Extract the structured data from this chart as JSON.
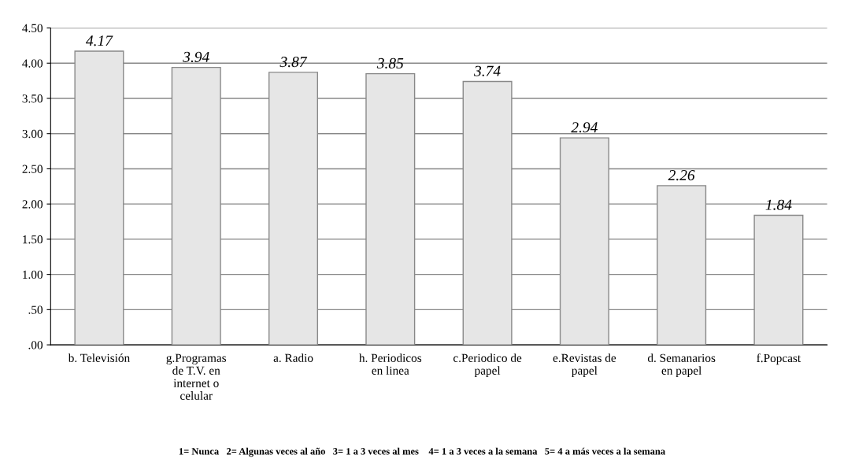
{
  "chart_data": {
    "type": "bar",
    "categories": [
      "b. Televisión",
      "g.Programas\nde T.V. en\ninternet o\ncelular",
      "a. Radio",
      "h. Periodicos\nen linea",
      "c.Periodico de\npapel",
      "e.Revistas de\npapel",
      "d. Semanarios\nen papel",
      "f.Popcast"
    ],
    "values": [
      4.17,
      3.94,
      3.87,
      3.85,
      3.74,
      2.94,
      2.26,
      1.84
    ],
    "color": "#e6e6e6",
    "ylim": [
      0,
      4.5
    ],
    "yticks": [
      {
        "value": 0,
        "label": ".00"
      },
      {
        "value": 0.5,
        "label": ".50"
      },
      {
        "value": 1,
        "label": "1.00"
      },
      {
        "value": 1.5,
        "label": "1.50"
      },
      {
        "value": 2,
        "label": "2.00"
      },
      {
        "value": 2.5,
        "label": "2.50"
      },
      {
        "value": 3,
        "label": "3.00"
      },
      {
        "value": 3.5,
        "label": "3.50"
      },
      {
        "value": 4,
        "label": "4.00"
      },
      {
        "value": 4.5,
        "label": "4.50"
      }
    ],
    "grid": "y",
    "data_labels": true,
    "annotations": [
      "1= Nunca   2= Algunas veces al año   3= 1 a 3 veces al mes    4= 1 a 3 veces a la semana   5= 4 a más veces a la semana"
    ]
  }
}
